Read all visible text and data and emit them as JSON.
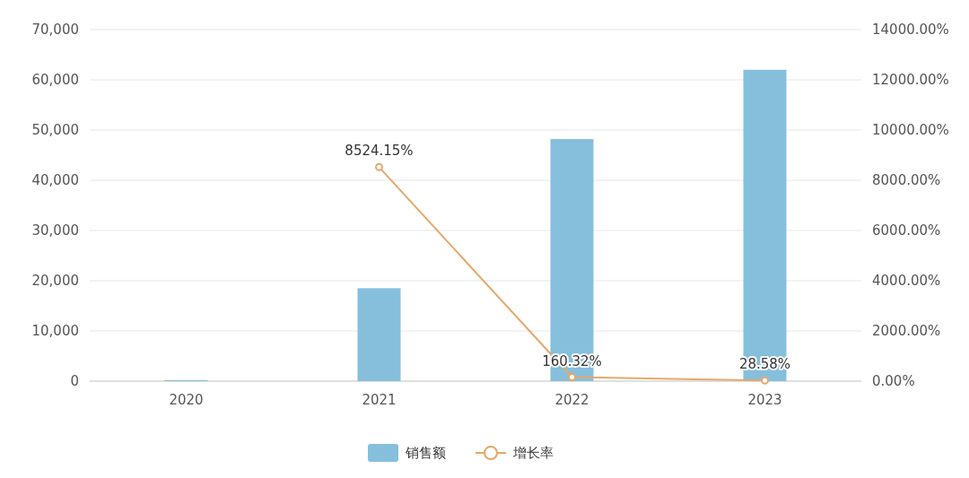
{
  "chart_data": {
    "type": "bar",
    "categories": [
      "2020",
      "2021",
      "2022",
      "2023"
    ],
    "series": [
      {
        "name": "销售额",
        "color": "#86bfdc",
        "values": [
          200,
          18500,
          48200,
          62000
        ]
      },
      {
        "name": "增长率",
        "type": "line",
        "axis": "y2",
        "color": "#e6a86a",
        "marker": "circle",
        "values": [
          null,
          8524.15,
          160.32,
          28.58
        ],
        "value_labels": [
          null,
          "8524.15%",
          "160.32%",
          "28.58%"
        ]
      }
    ],
    "ylim": [
      0,
      70000
    ],
    "yticks": [
      0,
      {
        "value": 10000,
        "label": "10,000"
      },
      {
        "value": 20000,
        "label": "20,000"
      },
      {
        "value": 30000,
        "label": "30,000"
      },
      {
        "value": 40000,
        "label": "40,000"
      },
      {
        "value": 50000,
        "label": "50,000"
      },
      {
        "value": 60000,
        "label": "60,000"
      },
      {
        "value": 70000,
        "label": "70,000"
      }
    ],
    "y2lim": [
      0,
      14000
    ],
    "y2ticks": [
      {
        "value": 0,
        "label": "0.00%"
      },
      {
        "value": 2000,
        "label": "2000.00%"
      },
      {
        "value": 4000,
        "label": "4000.00%"
      },
      {
        "value": 6000,
        "label": "6000.00%"
      },
      {
        "value": 8000,
        "label": "8000.00%"
      },
      {
        "value": 10000,
        "label": "10000.00%"
      },
      {
        "value": 12000,
        "label": "12000.00%"
      },
      {
        "value": 14000,
        "label": "14000.00%"
      }
    ],
    "grid": "y",
    "legend": "bottom"
  }
}
